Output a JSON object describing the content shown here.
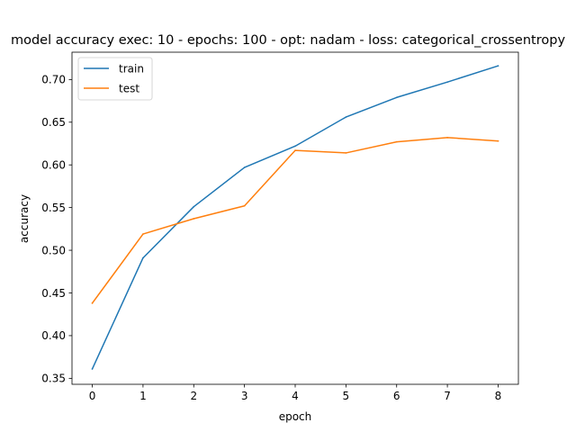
{
  "chart_data": {
    "type": "line",
    "title": "model accuracy exec: 10 - epochs: 100 - opt: nadam - loss: categorical_crossentropy",
    "xlabel": "epoch",
    "ylabel": "accuracy",
    "x": [
      0,
      1,
      2,
      3,
      4,
      5,
      6,
      7,
      8
    ],
    "xticks": [
      "0",
      "1",
      "2",
      "3",
      "4",
      "5",
      "6",
      "7",
      "8"
    ],
    "yticks": [
      "0.35",
      "0.40",
      "0.45",
      "0.50",
      "0.55",
      "0.60",
      "0.65",
      "0.70"
    ],
    "xlim": [
      -0.4,
      8.4
    ],
    "ylim": [
      0.343,
      0.732
    ],
    "grid": false,
    "legend_position": "top-left",
    "series": [
      {
        "name": "train",
        "color": "#1f77b4",
        "values": [
          0.361,
          0.491,
          0.551,
          0.597,
          0.622,
          0.656,
          0.679,
          0.697,
          0.716
        ]
      },
      {
        "name": "test",
        "color": "#ff7f0e",
        "values": [
          0.438,
          0.519,
          0.537,
          0.552,
          0.617,
          0.614,
          0.627,
          0.632,
          0.628
        ]
      }
    ]
  }
}
